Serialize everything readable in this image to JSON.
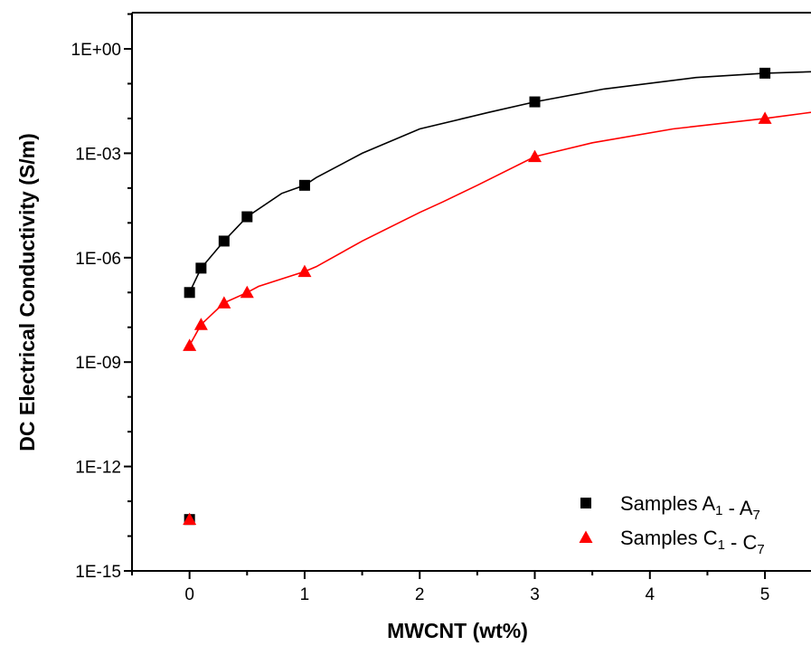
{
  "chart_data": {
    "type": "scatter",
    "xlabel": "MWCNT (wt%)",
    "ylabel": "DC Electrical Conductivity (S/m)",
    "xlim": [
      -0.5,
      5.4
    ],
    "ylim_log10": [
      -15,
      1
    ],
    "yscale": "log",
    "x_ticks": [
      0,
      1,
      2,
      3,
      4,
      5
    ],
    "x_tick_labels": [
      "0",
      "1",
      "2",
      "3",
      "4",
      "5"
    ],
    "y_ticks_log10": [
      -15,
      -12,
      -9,
      -6,
      -3,
      0
    ],
    "y_tick_labels": [
      "1E-15",
      "1E-12",
      "1E-09",
      "1E-06",
      "1E-03",
      "1E+00"
    ],
    "grid": false,
    "legend_position": "bottom-right",
    "series": [
      {
        "name": "Samples A - A",
        "legend": {
          "prefix": "Samples A",
          "sub1": "1",
          "middle": " - A",
          "sub2": "7"
        },
        "marker": "square",
        "color": "#000000",
        "points": [
          [
            0,
            3e-14
          ],
          [
            0,
            1e-07
          ],
          [
            0.1,
            5e-07
          ],
          [
            0.3,
            3e-06
          ],
          [
            0.5,
            1.5e-05
          ],
          [
            1,
            0.00012
          ],
          [
            3,
            0.03
          ],
          [
            5,
            0.2
          ]
        ],
        "fit_curve": [
          [
            0,
            1e-07
          ],
          [
            0.1,
            5e-07
          ],
          [
            0.3,
            3e-06
          ],
          [
            0.5,
            1.5e-05
          ],
          [
            0.8,
            7e-05
          ],
          [
            1,
            0.00012
          ],
          [
            1.1,
            0.0002
          ],
          [
            1.5,
            0.001
          ],
          [
            2,
            0.005
          ],
          [
            2.6,
            0.015
          ],
          [
            3,
            0.03
          ],
          [
            3.6,
            0.07
          ],
          [
            4.4,
            0.15
          ],
          [
            5,
            0.2
          ],
          [
            5.4,
            0.22
          ]
        ]
      },
      {
        "name": "Samples C - C",
        "legend": {
          "prefix": "Samples C",
          "sub1": "1",
          "middle": " - C",
          "sub2": "7"
        },
        "marker": "triangle",
        "color": "#ff0000",
        "points": [
          [
            0,
            3e-14
          ],
          [
            0,
            3e-09
          ],
          [
            0.1,
            1.2e-08
          ],
          [
            0.3,
            5e-08
          ],
          [
            0.5,
            1e-07
          ],
          [
            1,
            4e-07
          ],
          [
            3,
            0.0008
          ],
          [
            5,
            0.01
          ]
        ],
        "fit_curve": [
          [
            0,
            3e-09
          ],
          [
            0.05,
            6e-09
          ],
          [
            0.1,
            1.2e-08
          ],
          [
            0.3,
            5e-08
          ],
          [
            0.5,
            1e-07
          ],
          [
            0.6,
            1.5e-07
          ],
          [
            1,
            4e-07
          ],
          [
            1.1,
            5.5e-07
          ],
          [
            1.5,
            3e-06
          ],
          [
            2,
            2e-05
          ],
          [
            2.2,
            4e-05
          ],
          [
            2.5,
            0.00012
          ],
          [
            3,
            0.0008
          ],
          [
            3.5,
            0.002
          ],
          [
            4.2,
            0.005
          ],
          [
            5,
            0.01
          ],
          [
            5.4,
            0.015
          ]
        ]
      }
    ]
  }
}
